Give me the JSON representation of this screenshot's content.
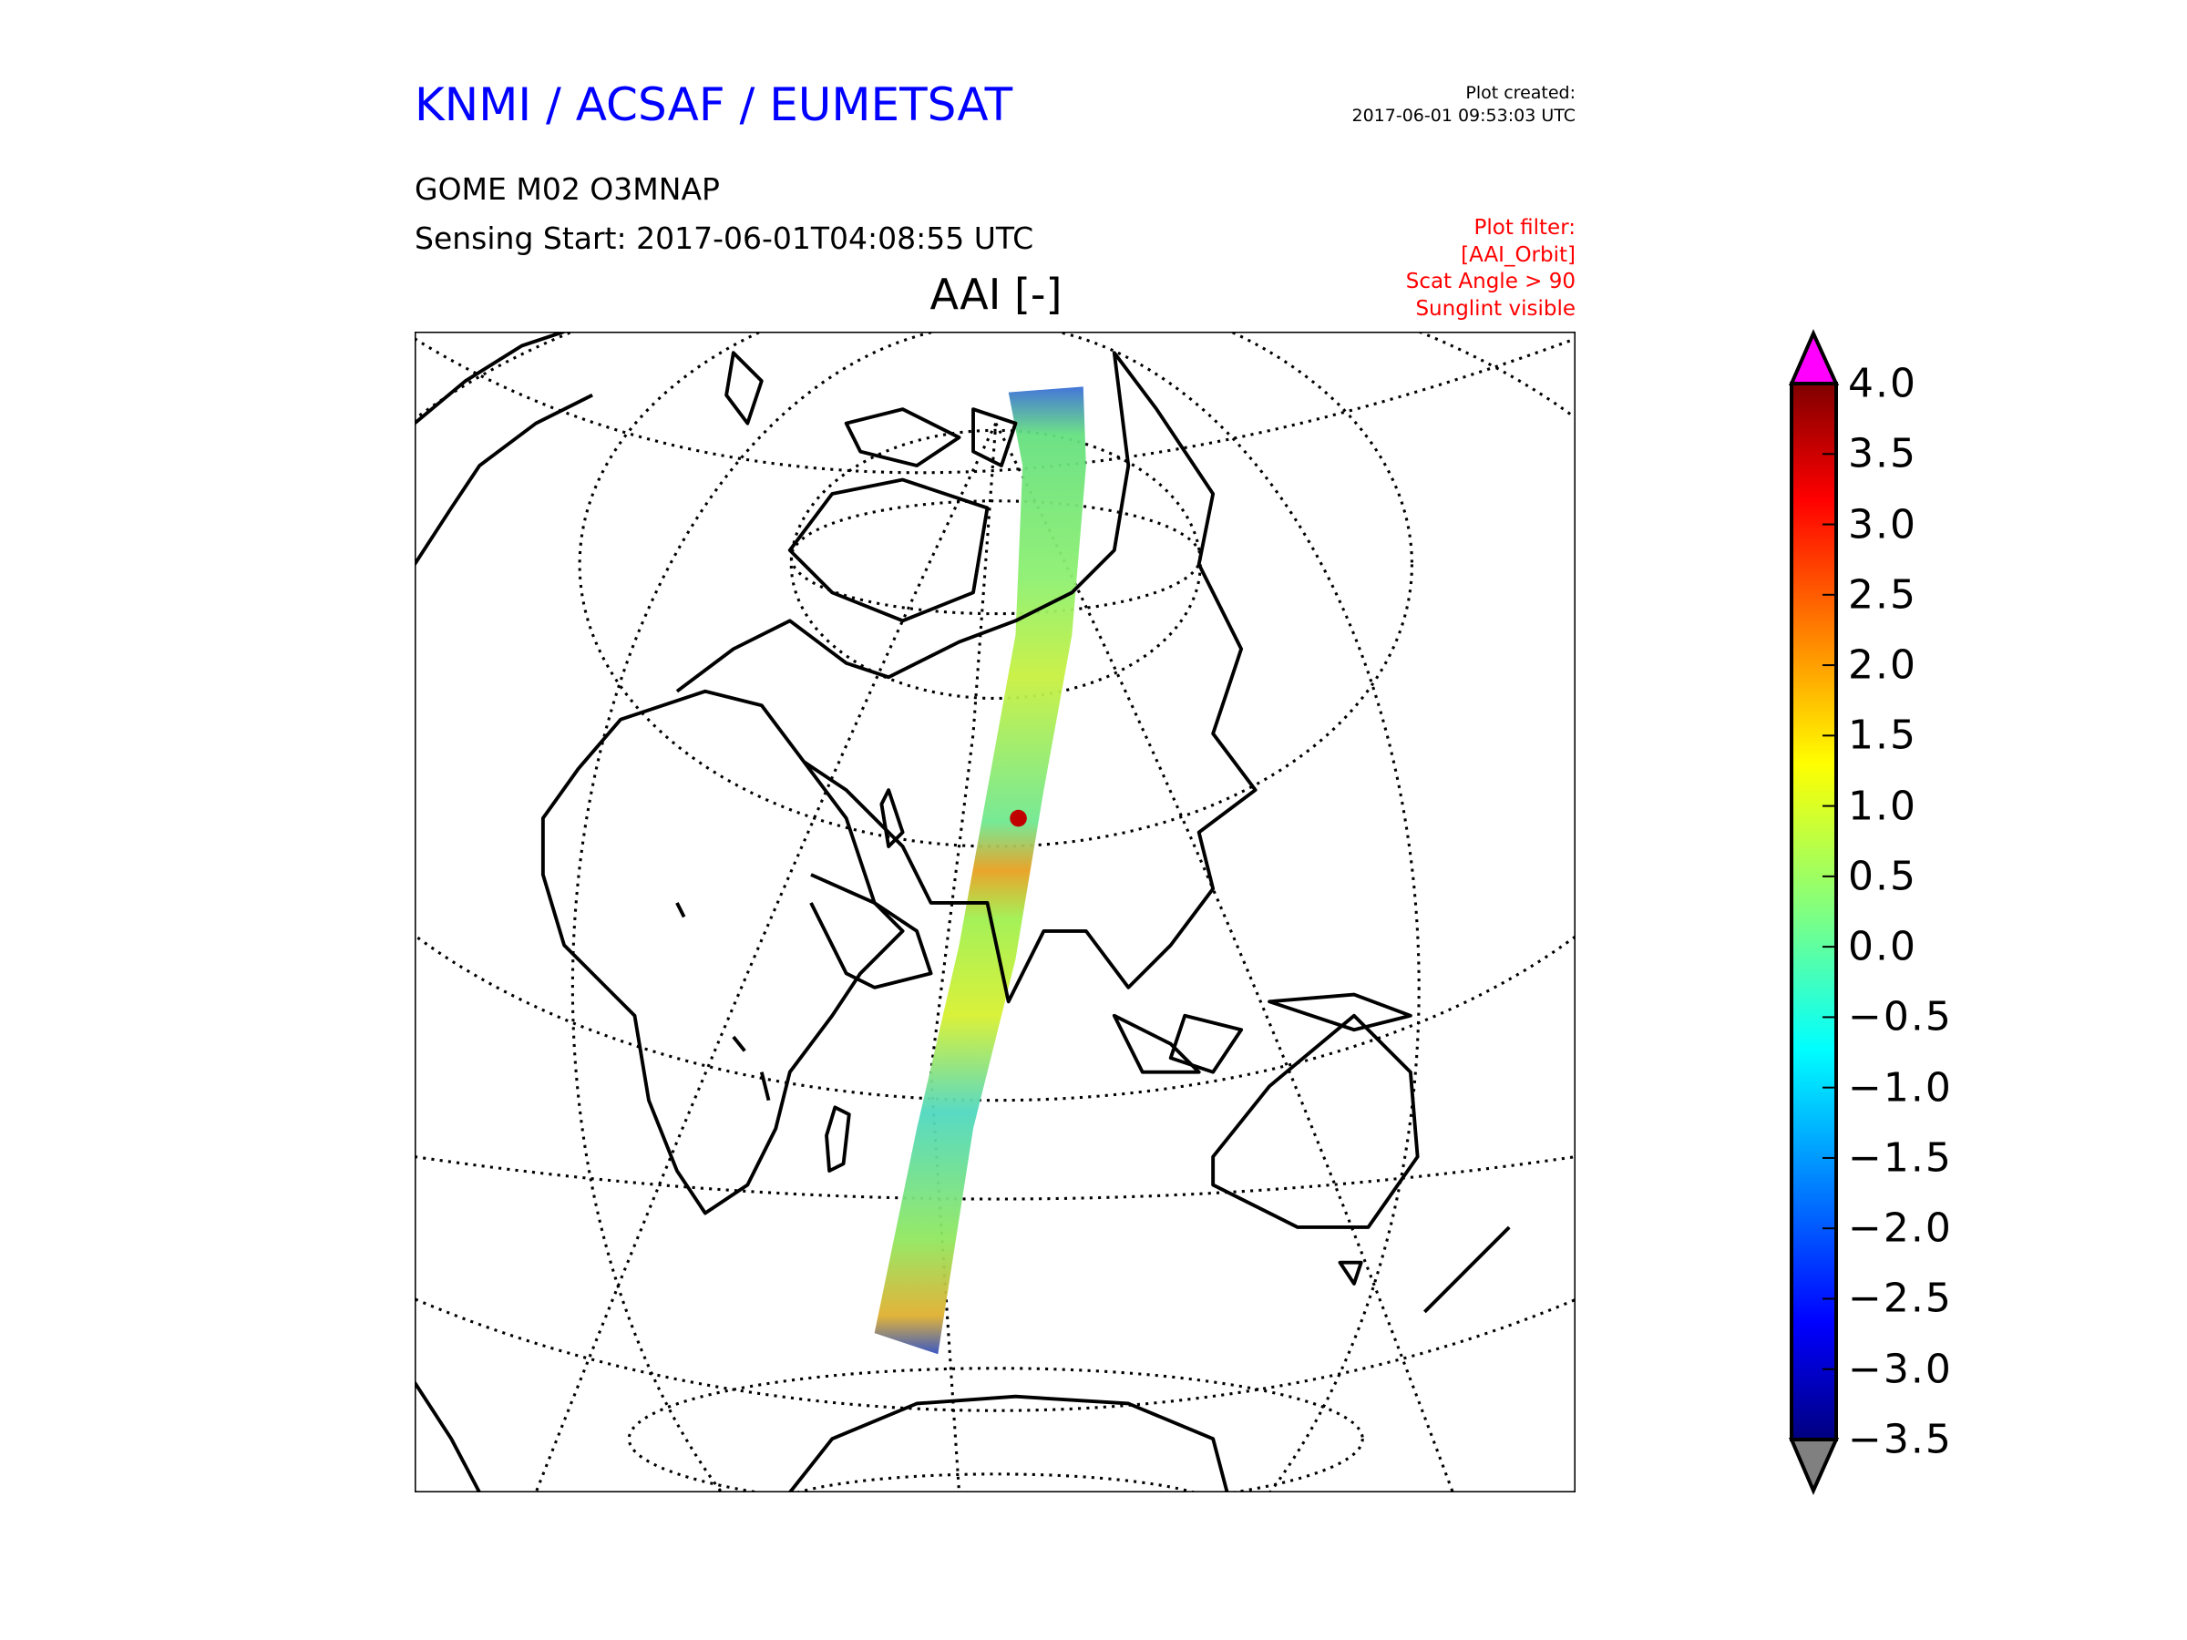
{
  "header": {
    "organization": "KNMI / ACSAF / EUMETSAT",
    "plot_created_label": "Plot created:",
    "plot_created_value": "2017-06-01 09:53:03 UTC",
    "product": "GOME M02 O3MNAP",
    "sensing_start": "Sensing Start: 2017-06-01T04:08:55 UTC",
    "plot_title": "AAI [-]"
  },
  "filter": {
    "label": "Plot filter:",
    "lines": [
      "[AAI_Orbit]",
      "Scat Angle > 90",
      "Sunglint visible"
    ]
  },
  "colors": {
    "org": "#0000ff",
    "filter": "#ff0000",
    "over": "#ff00ff",
    "under": "#808080"
  },
  "colorbar": {
    "min": -3.5,
    "max": 4.0,
    "colormap": "jet",
    "ticks": [
      "4.0",
      "3.5",
      "3.0",
      "2.5",
      "2.0",
      "1.5",
      "1.0",
      "0.5",
      "0.0",
      "−0.5",
      "−1.0",
      "−1.5",
      "−2.0",
      "−2.5",
      "−3.0",
      "−3.5"
    ]
  }
}
